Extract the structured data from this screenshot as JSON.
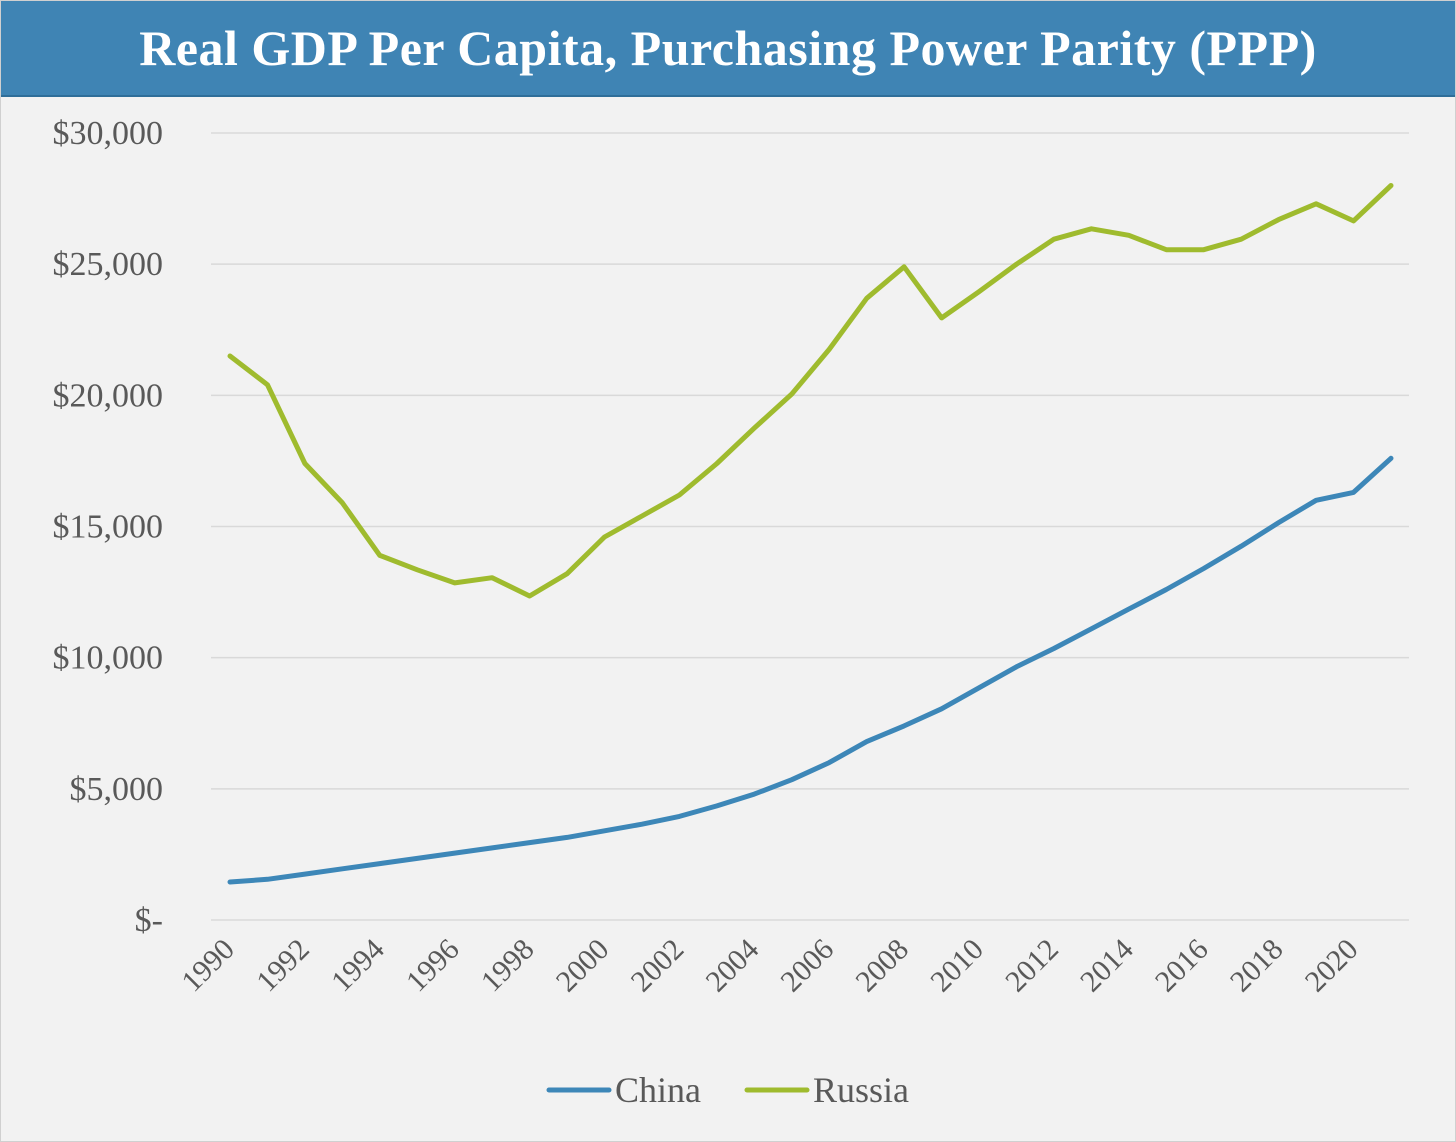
{
  "title": "Real GDP Per Capita, Purchasing Power Parity (PPP)",
  "colors": {
    "title_bg": "#3f84b4",
    "background": "#f2f2f2",
    "grid": "#d9d9d9",
    "china": "#3d87b8",
    "russia": "#9fbb2e"
  },
  "chart_data": {
    "type": "line",
    "x": [
      1990,
      1991,
      1992,
      1993,
      1994,
      1995,
      1996,
      1997,
      1998,
      1999,
      2000,
      2001,
      2002,
      2003,
      2004,
      2005,
      2006,
      2007,
      2008,
      2009,
      2010,
      2011,
      2012,
      2013,
      2014,
      2015,
      2016,
      2017,
      2018,
      2019,
      2020,
      2021
    ],
    "x_tick_labels": [
      "1990",
      "1992",
      "1994",
      "1996",
      "1998",
      "2000",
      "2002",
      "2004",
      "2006",
      "2008",
      "2010",
      "2012",
      "2014",
      "2016",
      "2018",
      "2020"
    ],
    "y_tick_values": [
      0,
      5000,
      10000,
      15000,
      20000,
      25000,
      30000
    ],
    "y_tick_labels": [
      "$-",
      "$5,000",
      "$10,000",
      "$15,000",
      "$20,000",
      "$25,000",
      "$30,000"
    ],
    "ylim": [
      0,
      30000
    ],
    "grid": true,
    "legend_position": "bottom",
    "series": [
      {
        "name": "China",
        "color": "#3d87b8",
        "values": [
          1450,
          1550,
          1750,
          1950,
          2150,
          2350,
          2550,
          2750,
          2950,
          3150,
          3400,
          3650,
          3950,
          4350,
          4800,
          5350,
          6000,
          6800,
          7400,
          8050,
          8850,
          9650,
          10350,
          11100,
          11850,
          12600,
          13400,
          14250,
          15150,
          16000,
          16300,
          17600
        ]
      },
      {
        "name": "Russia",
        "color": "#9fbb2e",
        "values": [
          21500,
          20400,
          17400,
          15900,
          13900,
          13350,
          12850,
          13050,
          12350,
          13200,
          14600,
          15400,
          16200,
          17400,
          18750,
          20050,
          21750,
          23700,
          24900,
          22950,
          23950,
          25000,
          25950,
          26350,
          26100,
          25550,
          25550,
          25950,
          26700,
          27300,
          26650,
          28000
        ]
      }
    ]
  }
}
